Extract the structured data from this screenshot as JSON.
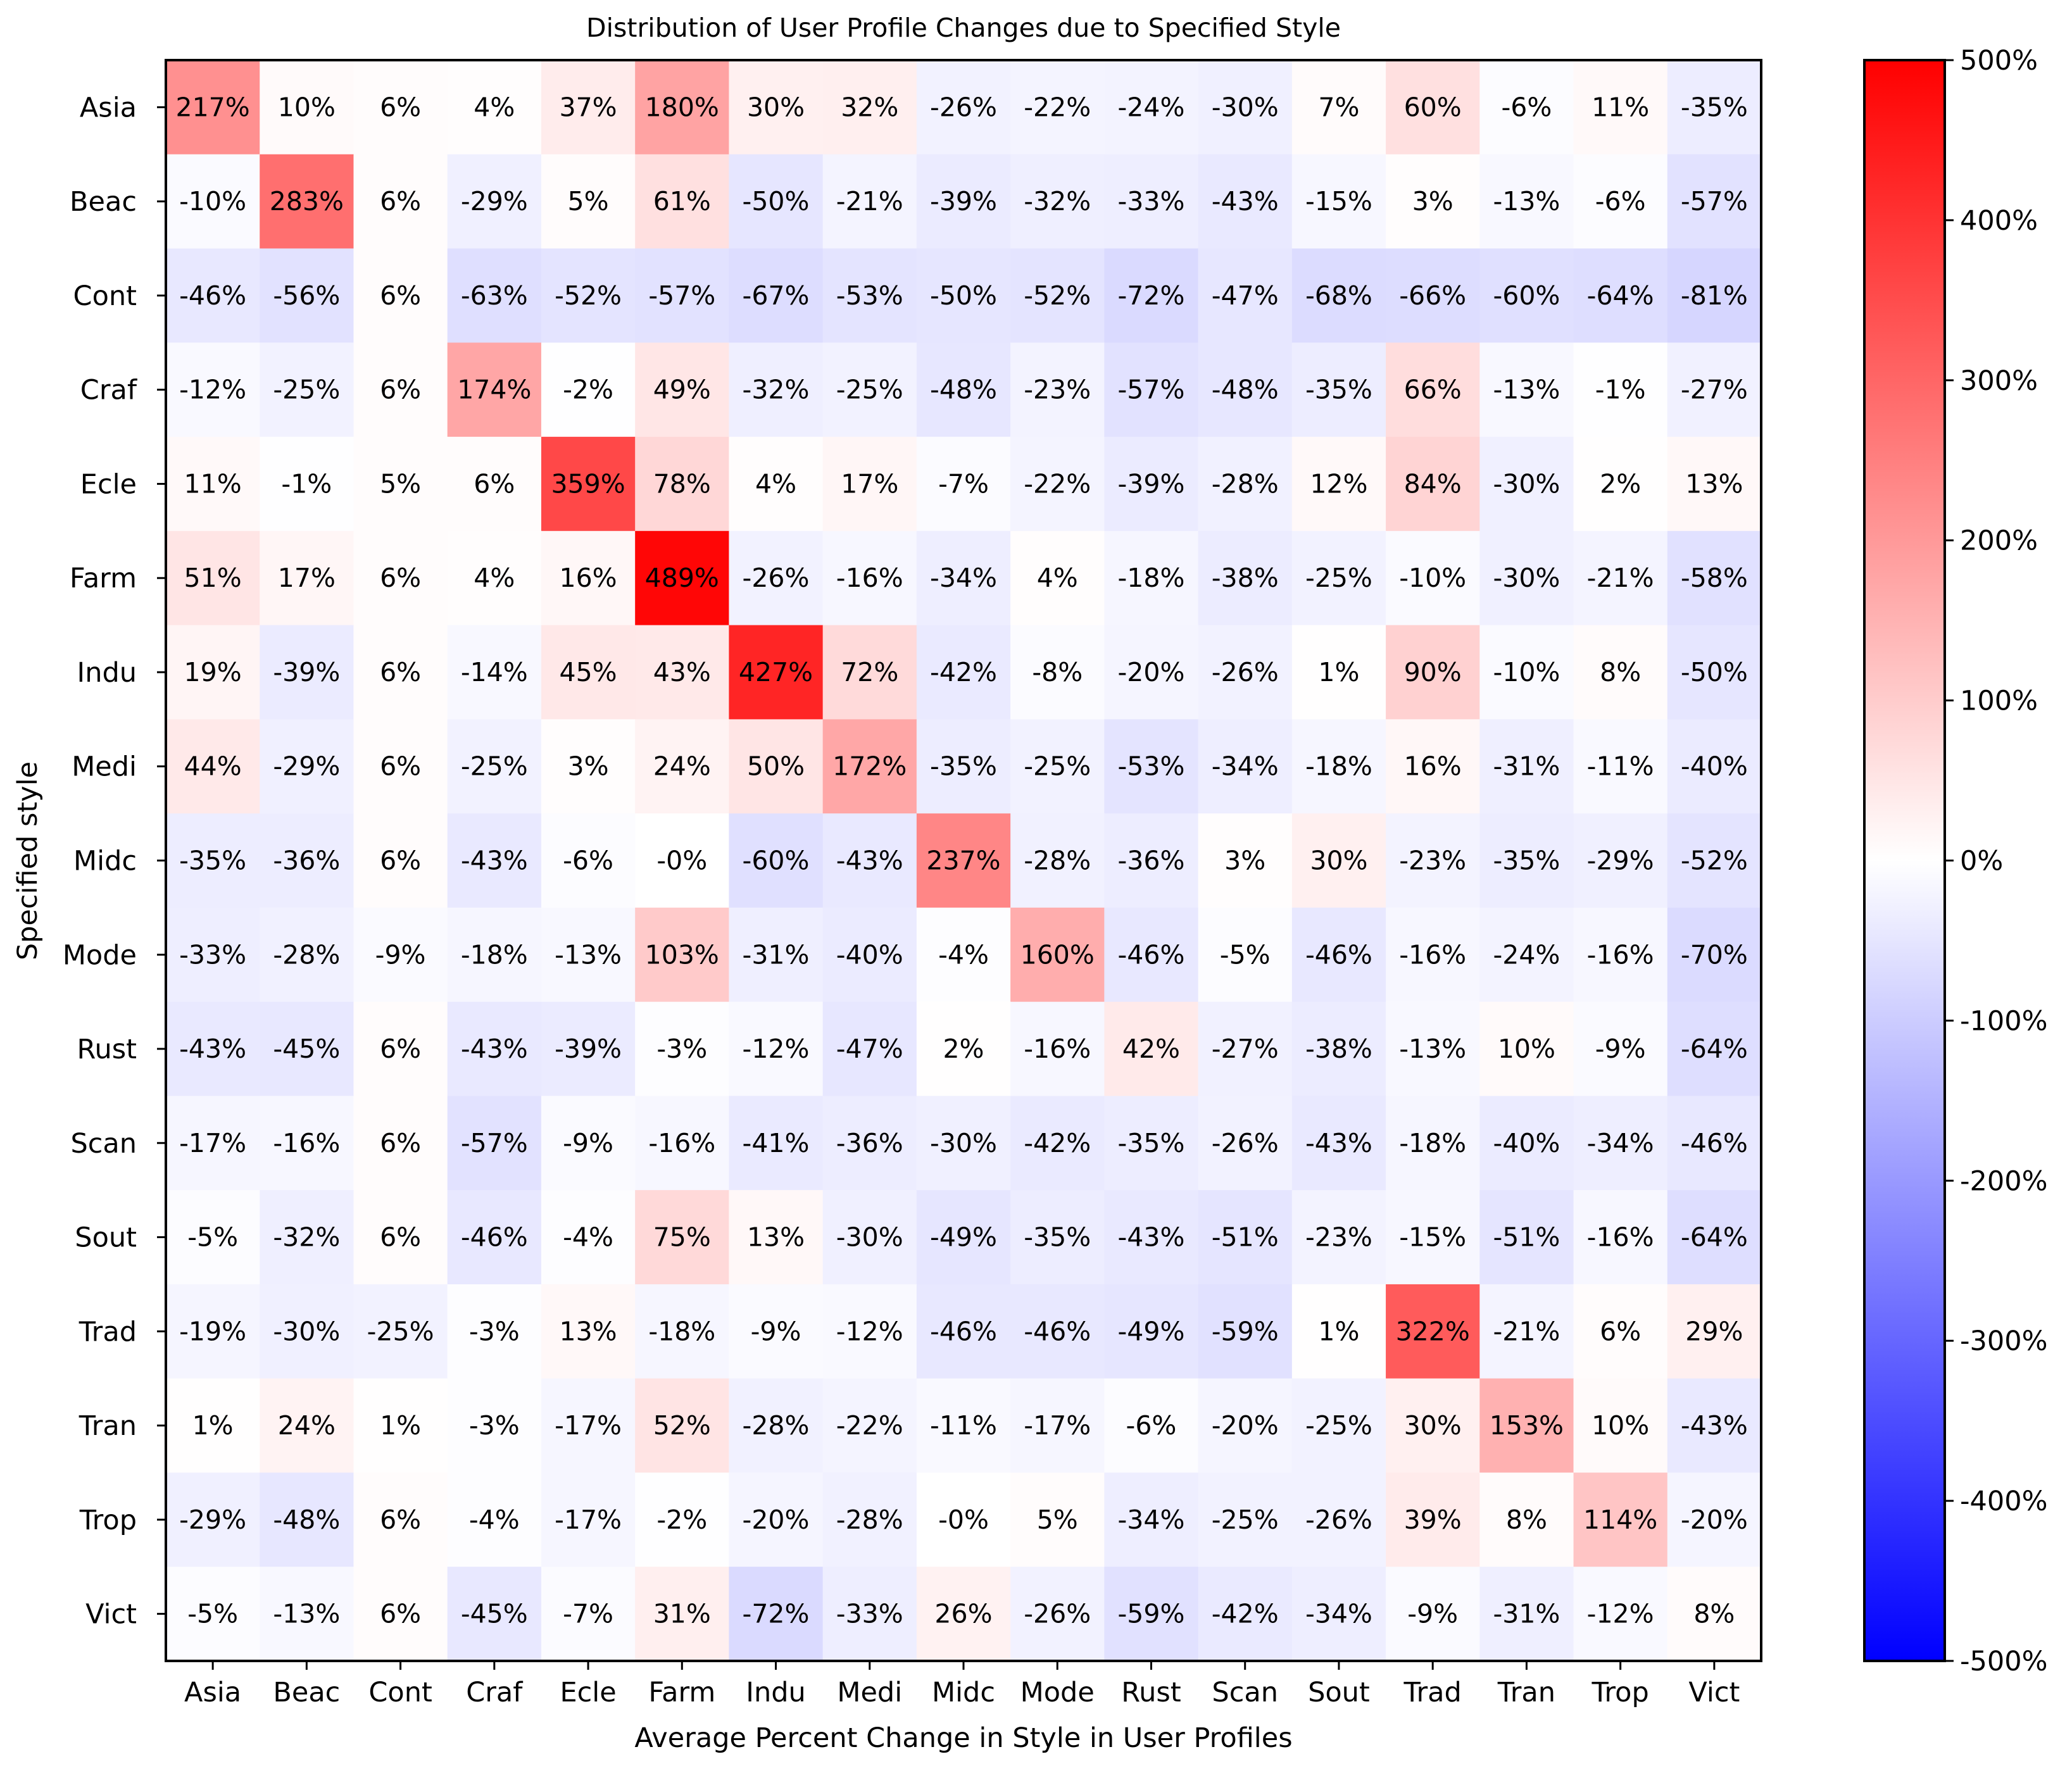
{
  "chart_data": {
    "type": "heatmap",
    "title": "Distribution of User Profile Changes due to Specified Style",
    "xlabel": "Average Percent Change in Style in User Profiles",
    "ylabel": "Specified style",
    "x_categories": [
      "Asia",
      "Beac",
      "Cont",
      "Craf",
      "Ecle",
      "Farm",
      "Indu",
      "Medi",
      "Midc",
      "Mode",
      "Rust",
      "Scan",
      "Sout",
      "Trad",
      "Tran",
      "Trop",
      "Vict"
    ],
    "y_categories": [
      "Asia",
      "Beac",
      "Cont",
      "Craf",
      "Ecle",
      "Farm",
      "Indu",
      "Medi",
      "Midc",
      "Mode",
      "Rust",
      "Scan",
      "Sout",
      "Trad",
      "Tran",
      "Trop",
      "Vict"
    ],
    "values": [
      [
        217,
        10,
        6,
        4,
        37,
        180,
        30,
        32,
        -26,
        -22,
        -24,
        -30,
        7,
        60,
        -6,
        11,
        -35
      ],
      [
        -10,
        283,
        6,
        -29,
        5,
        61,
        -50,
        -21,
        -39,
        -32,
        -33,
        -43,
        -15,
        3,
        -13,
        -6,
        -57
      ],
      [
        -46,
        -56,
        6,
        -63,
        -52,
        -57,
        -67,
        -53,
        -50,
        -52,
        -72,
        -47,
        -68,
        -66,
        -60,
        -64,
        -81
      ],
      [
        -12,
        -25,
        6,
        174,
        -2,
        49,
        -32,
        -25,
        -48,
        -23,
        -57,
        -48,
        -35,
        66,
        -13,
        -1,
        -27
      ],
      [
        11,
        -1,
        5,
        6,
        359,
        78,
        4,
        17,
        -7,
        -22,
        -39,
        -28,
        12,
        84,
        -30,
        2,
        13
      ],
      [
        51,
        17,
        6,
        4,
        16,
        489,
        -26,
        -16,
        -34,
        4,
        -18,
        -38,
        -25,
        -10,
        -30,
        -21,
        -58
      ],
      [
        19,
        -39,
        6,
        -14,
        45,
        43,
        427,
        72,
        -42,
        -8,
        -20,
        -26,
        1,
        90,
        -10,
        8,
        -50
      ],
      [
        44,
        -29,
        6,
        -25,
        3,
        24,
        50,
        172,
        -35,
        -25,
        -53,
        -34,
        -18,
        16,
        -31,
        -11,
        -40
      ],
      [
        -35,
        -36,
        6,
        -43,
        -6,
        0,
        -60,
        -43,
        237,
        -28,
        -36,
        3,
        30,
        -23,
        -35,
        -29,
        -52
      ],
      [
        -33,
        -28,
        -9,
        -18,
        -13,
        103,
        -31,
        -40,
        -4,
        160,
        -46,
        -5,
        -46,
        -16,
        -24,
        -16,
        -70
      ],
      [
        -43,
        -45,
        6,
        -43,
        -39,
        -3,
        -12,
        -47,
        2,
        -16,
        42,
        -27,
        -38,
        -13,
        10,
        -9,
        -64
      ],
      [
        -17,
        -16,
        6,
        -57,
        -9,
        -16,
        -41,
        -36,
        -30,
        -42,
        -35,
        -26,
        -43,
        -18,
        -40,
        -34,
        -46
      ],
      [
        -5,
        -32,
        6,
        -46,
        -4,
        75,
        13,
        -30,
        -49,
        -35,
        -43,
        -51,
        -23,
        -15,
        -51,
        -16,
        -64
      ],
      [
        -19,
        -30,
        -25,
        -3,
        13,
        -18,
        -9,
        -12,
        -46,
        -46,
        -49,
        -59,
        1,
        322,
        -21,
        6,
        29
      ],
      [
        1,
        24,
        1,
        -3,
        -17,
        52,
        -28,
        -22,
        -11,
        -17,
        -6,
        -20,
        -25,
        30,
        153,
        10,
        -43
      ],
      [
        -29,
        -48,
        6,
        -4,
        -17,
        -2,
        -20,
        -28,
        0,
        5,
        -34,
        -25,
        -26,
        39,
        8,
        114,
        -20
      ],
      [
        -5,
        -13,
        6,
        -45,
        -7,
        31,
        -72,
        -33,
        26,
        -26,
        -59,
        -42,
        -34,
        -9,
        -31,
        -12,
        8
      ]
    ],
    "value_labels": [
      [
        "217%",
        "10%",
        "6%",
        "4%",
        "37%",
        "180%",
        "30%",
        "32%",
        "-26%",
        "-22%",
        "-24%",
        "-30%",
        "7%",
        "60%",
        "-6%",
        "11%",
        "-35%"
      ],
      [
        "-10%",
        "283%",
        "6%",
        "-29%",
        "5%",
        "61%",
        "-50%",
        "-21%",
        "-39%",
        "-32%",
        "-33%",
        "-43%",
        "-15%",
        "3%",
        "-13%",
        "-6%",
        "-57%"
      ],
      [
        "-46%",
        "-56%",
        "6%",
        "-63%",
        "-52%",
        "-57%",
        "-67%",
        "-53%",
        "-50%",
        "-52%",
        "-72%",
        "-47%",
        "-68%",
        "-66%",
        "-60%",
        "-64%",
        "-81%"
      ],
      [
        "-12%",
        "-25%",
        "6%",
        "174%",
        "-2%",
        "49%",
        "-32%",
        "-25%",
        "-48%",
        "-23%",
        "-57%",
        "-48%",
        "-35%",
        "66%",
        "-13%",
        "-1%",
        "-27%"
      ],
      [
        "11%",
        "-1%",
        "5%",
        "6%",
        "359%",
        "78%",
        "4%",
        "17%",
        "-7%",
        "-22%",
        "-39%",
        "-28%",
        "12%",
        "84%",
        "-30%",
        "2%",
        "13%"
      ],
      [
        "51%",
        "17%",
        "6%",
        "4%",
        "16%",
        "489%",
        "-26%",
        "-16%",
        "-34%",
        "4%",
        "-18%",
        "-38%",
        "-25%",
        "-10%",
        "-30%",
        "-21%",
        "-58%"
      ],
      [
        "19%",
        "-39%",
        "6%",
        "-14%",
        "45%",
        "43%",
        "427%",
        "72%",
        "-42%",
        "-8%",
        "-20%",
        "-26%",
        "1%",
        "90%",
        "-10%",
        "8%",
        "-50%"
      ],
      [
        "44%",
        "-29%",
        "6%",
        "-25%",
        "3%",
        "24%",
        "50%",
        "172%",
        "-35%",
        "-25%",
        "-53%",
        "-34%",
        "-18%",
        "16%",
        "-31%",
        "-11%",
        "-40%"
      ],
      [
        "-35%",
        "-36%",
        "6%",
        "-43%",
        "-6%",
        "-0%",
        "-60%",
        "-43%",
        "237%",
        "-28%",
        "-36%",
        "3%",
        "30%",
        "-23%",
        "-35%",
        "-29%",
        "-52%"
      ],
      [
        "-33%",
        "-28%",
        "-9%",
        "-18%",
        "-13%",
        "103%",
        "-31%",
        "-40%",
        "-4%",
        "160%",
        "-46%",
        "-5%",
        "-46%",
        "-16%",
        "-24%",
        "-16%",
        "-70%"
      ],
      [
        "-43%",
        "-45%",
        "6%",
        "-43%",
        "-39%",
        "-3%",
        "-12%",
        "-47%",
        "2%",
        "-16%",
        "42%",
        "-27%",
        "-38%",
        "-13%",
        "10%",
        "-9%",
        "-64%"
      ],
      [
        "-17%",
        "-16%",
        "6%",
        "-57%",
        "-9%",
        "-16%",
        "-41%",
        "-36%",
        "-30%",
        "-42%",
        "-35%",
        "-26%",
        "-43%",
        "-18%",
        "-40%",
        "-34%",
        "-46%"
      ],
      [
        "-5%",
        "-32%",
        "6%",
        "-46%",
        "-4%",
        "75%",
        "13%",
        "-30%",
        "-49%",
        "-35%",
        "-43%",
        "-51%",
        "-23%",
        "-15%",
        "-51%",
        "-16%",
        "-64%"
      ],
      [
        "-19%",
        "-30%",
        "-25%",
        "-3%",
        "13%",
        "-18%",
        "-9%",
        "-12%",
        "-46%",
        "-46%",
        "-49%",
        "-59%",
        "1%",
        "322%",
        "-21%",
        "6%",
        "29%"
      ],
      [
        "1%",
        "24%",
        "1%",
        "-3%",
        "-17%",
        "52%",
        "-28%",
        "-22%",
        "-11%",
        "-17%",
        "-6%",
        "-20%",
        "-25%",
        "30%",
        "153%",
        "10%",
        "-43%"
      ],
      [
        "-29%",
        "-48%",
        "6%",
        "-4%",
        "-17%",
        "-2%",
        "-20%",
        "-28%",
        "-0%",
        "5%",
        "-34%",
        "-25%",
        "-26%",
        "39%",
        "8%",
        "114%",
        "-20%"
      ],
      [
        "-5%",
        "-13%",
        "6%",
        "-45%",
        "-7%",
        "31%",
        "-72%",
        "-33%",
        "26%",
        "-26%",
        "-59%",
        "-42%",
        "-34%",
        "-9%",
        "-31%",
        "-12%",
        "8%"
      ]
    ],
    "colorbar": {
      "colormap": "bwr",
      "min": -500,
      "max": 500,
      "ticks": [
        500,
        400,
        300,
        200,
        100,
        0,
        -100,
        -200,
        -300,
        -400,
        -500
      ],
      "tick_labels": [
        "500%",
        "400%",
        "300%",
        "200%",
        "100%",
        "0%",
        "-100%",
        "-200%",
        "-300%",
        "-400%",
        "-500%"
      ],
      "low_color": "#0000ff",
      "mid_color": "#ffffff",
      "high_color": "#ff0000"
    },
    "grid": false
  }
}
